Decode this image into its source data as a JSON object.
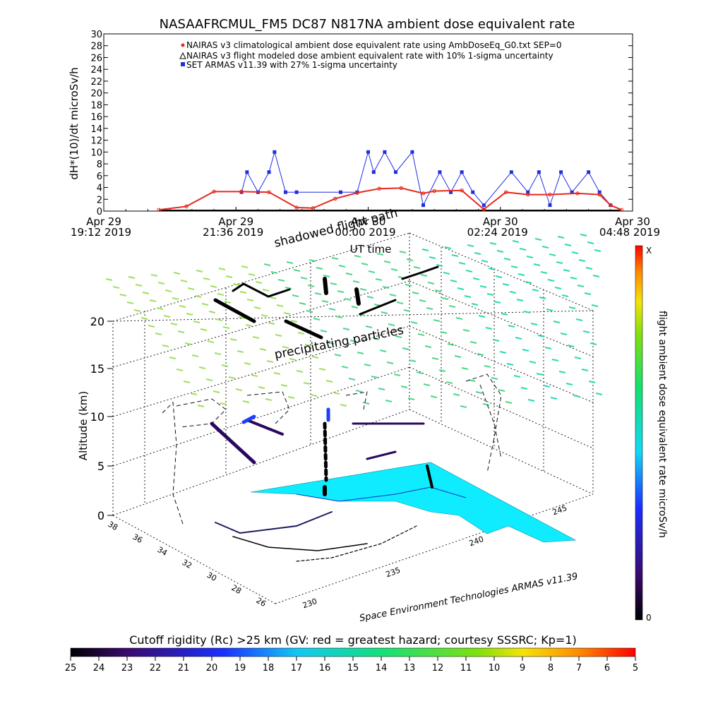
{
  "chart_data": [
    {
      "type": "line",
      "title": "NASAAFRCMUL_FM5 DC87 N817NA ambient dose equivalent rate",
      "xlabel": "UT time",
      "ylabel": "dH*(10)/dt microSv/h",
      "ylim": [
        0,
        30
      ],
      "y_ticks": [
        "0",
        "2",
        "4",
        "6",
        "8",
        "10",
        "12",
        "14",
        "16",
        "18",
        "20",
        "22",
        "24",
        "26",
        "28",
        "30"
      ],
      "x_ticks": [
        {
          "line1": "Apr 29",
          "line2": "19:12 2019"
        },
        {
          "line1": "Apr 29",
          "line2": "21:36 2019"
        },
        {
          "line1": "Apr 30",
          "line2": "00:00 2019"
        },
        {
          "line1": "Apr 30",
          "line2": "02:24 2019"
        },
        {
          "line1": "Apr 30",
          "line2": "04:48 2019"
        }
      ],
      "x_range_hours": [
        0,
        9.6
      ],
      "legend_position": "top-right",
      "series": [
        {
          "name": "NAIRAS v3 climatological ambient dose equivalent rate using AmbDoseEq_G0.txt SEP=0",
          "color": "#e8281e",
          "marker": "circle",
          "x_hours": [
            1.0,
            1.5,
            2.0,
            2.5,
            3.0,
            3.5,
            3.8,
            4.2,
            4.6,
            5.0,
            5.4,
            5.8,
            6.0,
            6.5,
            6.9,
            7.3,
            7.7,
            8.1,
            8.6,
            9.0,
            9.2,
            9.4
          ],
          "values": [
            0.2,
            0.8,
            3.3,
            3.3,
            3.2,
            0.6,
            0.5,
            2.1,
            3.1,
            3.8,
            3.9,
            3.0,
            3.4,
            3.5,
            0.3,
            3.2,
            2.8,
            2.8,
            3.0,
            2.8,
            1.0,
            0.2
          ]
        },
        {
          "name": "NAIRAS v3 flight modeled dose ambient equivalent rate with 10% 1-sigma uncertainty",
          "color": "#000000",
          "marker": "triangle",
          "x_hours": [
            0.0,
            9.6
          ],
          "values": [
            0,
            0
          ]
        },
        {
          "name": "SET ARMAS v11.39 with 27% 1-sigma uncertainty",
          "color": "#1f2fe0",
          "marker": "square",
          "x_hours": [
            2.5,
            2.6,
            2.8,
            3.0,
            3.1,
            3.3,
            3.5,
            4.3,
            4.6,
            4.8,
            4.9,
            5.1,
            5.3,
            5.6,
            5.8,
            6.1,
            6.3,
            6.5,
            6.7,
            6.9,
            7.4,
            7.7,
            7.9,
            8.1,
            8.3,
            8.5,
            8.8,
            9.0,
            9.2
          ],
          "values": [
            3.2,
            6.6,
            3.2,
            6.6,
            10.0,
            3.2,
            3.2,
            3.2,
            3.2,
            10.0,
            6.6,
            10.0,
            6.6,
            10.0,
            1.0,
            6.6,
            3.2,
            6.6,
            3.2,
            1.0,
            6.6,
            3.2,
            6.6,
            1.0,
            6.6,
            3.2,
            6.6,
            3.2,
            1.0
          ]
        }
      ]
    },
    {
      "type": "3d-trajectory",
      "zlabel": "Altitude (km)",
      "z_ticks": [
        "0",
        "5",
        "10",
        "15",
        "20"
      ],
      "lat_ticks": [
        "38",
        "36",
        "34",
        "32",
        "30",
        "28",
        "26"
      ],
      "lon_ticks": [
        "230",
        "235",
        "240",
        "245"
      ],
      "annotations": [
        "shadowed flight path",
        "precipitating particles"
      ],
      "footer": "Space Environment Technologies ARMAS v11.39",
      "colorbar_label": "flight ambient dose equivalent rate microSv/h",
      "colorbar_top": "X",
      "colorbar_bottom": "0"
    },
    {
      "type": "colorbar",
      "title": "Cutoff rigidity (Rc) >25 km (GV: red = greatest hazard; courtesy SSSRC; Kp=1)",
      "ticks": [
        "25",
        "24",
        "23",
        "22",
        "21",
        "20",
        "19",
        "18",
        "17",
        "16",
        "15",
        "14",
        "13",
        "12",
        "11",
        "10",
        "9",
        "8",
        "7",
        "6",
        "5"
      ]
    }
  ],
  "colors": {
    "ground_cyan": "#10ecff",
    "grid_dash": "#333333",
    "top_grid_green": "#3ad89a"
  }
}
